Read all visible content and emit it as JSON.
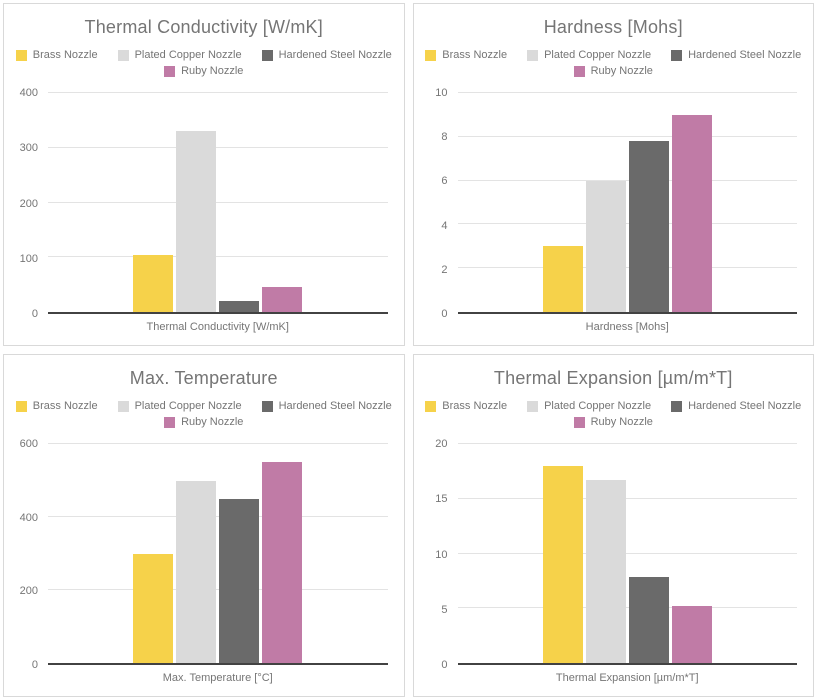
{
  "chart_data": [
    {
      "type": "bar",
      "title": "Thermal Conductivity [W/mK]",
      "xlabel": "Thermal Conductivity [W/mK]",
      "categories": [
        "Thermal Conductivity [W/mK]"
      ],
      "ylim": [
        0,
        400
      ],
      "yticks": [
        0,
        100,
        200,
        300,
        400
      ],
      "grid": true,
      "legend_position": "top",
      "series": [
        {
          "name": "Brass Nozzle",
          "color": "#f6d24a",
          "values": [
            105
          ]
        },
        {
          "name": "Plated Copper Nozzle",
          "color": "#dadada",
          "values": [
            330
          ]
        },
        {
          "name": "Hardened Steel Nozzle",
          "color": "#6a6a6a",
          "values": [
            20
          ]
        },
        {
          "name": "Ruby Nozzle",
          "color": "#c07ba6",
          "values": [
            45
          ]
        }
      ]
    },
    {
      "type": "bar",
      "title": "Hardness [Mohs]",
      "xlabel": "Hardness [Mohs]",
      "categories": [
        "Hardness [Mohs]"
      ],
      "ylim": [
        0,
        10
      ],
      "yticks": [
        0,
        2,
        4,
        6,
        8,
        10
      ],
      "grid": true,
      "legend_position": "top",
      "series": [
        {
          "name": "Brass Nozzle",
          "color": "#f6d24a",
          "values": [
            3
          ]
        },
        {
          "name": "Plated Copper Nozzle",
          "color": "#dadada",
          "values": [
            6
          ]
        },
        {
          "name": "Hardened Steel Nozzle",
          "color": "#6a6a6a",
          "values": [
            7.8
          ]
        },
        {
          "name": "Ruby Nozzle",
          "color": "#c07ba6",
          "values": [
            9
          ]
        }
      ]
    },
    {
      "type": "bar",
      "title": "Max. Temperature",
      "xlabel": "Max. Temperature [°C]",
      "categories": [
        "Max. Temperature [°C]"
      ],
      "ylim": [
        0,
        600
      ],
      "yticks": [
        0,
        200,
        400,
        600
      ],
      "grid": true,
      "legend_position": "top",
      "series": [
        {
          "name": "Brass Nozzle",
          "color": "#f6d24a",
          "values": [
            300
          ]
        },
        {
          "name": "Plated Copper Nozzle",
          "color": "#dadada",
          "values": [
            500
          ]
        },
        {
          "name": "Hardened Steel Nozzle",
          "color": "#6a6a6a",
          "values": [
            450
          ]
        },
        {
          "name": "Ruby Nozzle",
          "color": "#c07ba6",
          "values": [
            550
          ]
        }
      ]
    },
    {
      "type": "bar",
      "title": "Thermal Expansion [µm/m*T]",
      "xlabel": "Thermal Expansion [µm/m*T]",
      "categories": [
        "Thermal Expansion [µm/m*T]"
      ],
      "ylim": [
        0,
        20
      ],
      "yticks": [
        0,
        5,
        10,
        15,
        20
      ],
      "grid": true,
      "legend_position": "top",
      "series": [
        {
          "name": "Brass Nozzle",
          "color": "#f6d24a",
          "values": [
            18
          ]
        },
        {
          "name": "Plated Copper Nozzle",
          "color": "#dadada",
          "values": [
            16.7
          ]
        },
        {
          "name": "Hardened Steel Nozzle",
          "color": "#6a6a6a",
          "values": [
            7.9
          ]
        },
        {
          "name": "Ruby Nozzle",
          "color": "#c07ba6",
          "values": [
            5.2
          ]
        }
      ]
    }
  ],
  "style": {
    "title_color": "#757575",
    "tick_color": "#757575",
    "gridline_color": "#e3e3e3",
    "baseline_color": "#424242",
    "panel_border_color": "#d9d9d9"
  }
}
